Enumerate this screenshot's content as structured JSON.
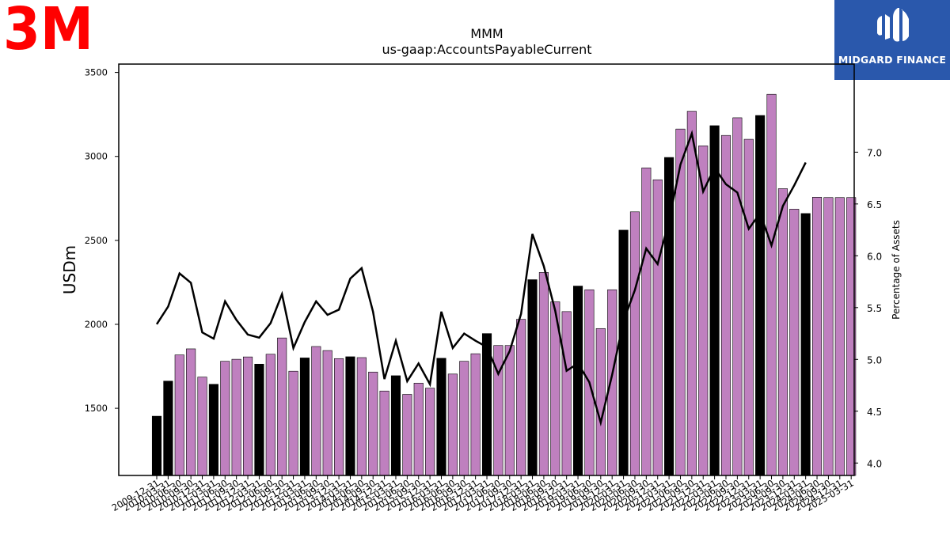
{
  "brand": {
    "left_logo_text": "3M",
    "left_logo_color": "#ff0000",
    "right_logo_text": "MIDGARD FINANCE",
    "right_logo_bg": "#2a58ac"
  },
  "chart_data": {
    "type": "bar",
    "title": "MMM",
    "subtitle": "us-gaap:AccountsPayableCurrent",
    "ylabel": "USDm",
    "y2label": "Percentage of Assets",
    "ylim": [
      1100,
      3550
    ],
    "y2lim": [
      3.88,
      7.85
    ],
    "yticks": [
      1500,
      2000,
      2500,
      3000,
      3500
    ],
    "y2ticks": [
      "4.0",
      "4.5",
      "5.0",
      "5.5",
      "6.0",
      "6.5",
      "7.0"
    ],
    "bar_colors": {
      "annual": "#000000",
      "quarterly": "#bf80bf"
    },
    "line_color": "#000000",
    "categories": [
      "2009-12-31",
      "2010-03-31",
      "2010-06-30",
      "2010-09-30",
      "2010-12-31",
      "2011-03-31",
      "2011-06-30",
      "2011-09-30",
      "2011-12-31",
      "2012-03-31",
      "2012-06-30",
      "2012-09-30",
      "2012-12-31",
      "2013-03-31",
      "2013-06-30",
      "2013-09-30",
      "2013-12-31",
      "2014-03-31",
      "2014-06-30",
      "2014-09-30",
      "2014-12-31",
      "2015-03-31",
      "2015-06-30",
      "2015-09-30",
      "2015-12-31",
      "2016-03-31",
      "2016-06-30",
      "2016-09-30",
      "2016-12-31",
      "2017-03-31",
      "2017-06-30",
      "2017-09-30",
      "2017-12-31",
      "2018-03-31",
      "2018-06-30",
      "2018-09-30",
      "2018-12-31",
      "2019-03-31",
      "2019-06-30",
      "2019-09-30",
      "2019-12-31",
      "2020-03-31",
      "2020-06-30",
      "2020-09-30",
      "2020-12-31",
      "2021-03-31",
      "2021-06-30",
      "2021-09-30",
      "2021-12-31",
      "2022-03-31",
      "2022-06-30",
      "2022-09-30",
      "2022-12-31",
      "2023-03-31",
      "2023-06-30",
      "2023-09-30",
      "2023-12-31",
      "2024-03-31",
      "2024-06-30",
      "2024-09-30",
      "2024-12-31",
      "2025-03-31"
    ],
    "values": [
      1453,
      1662,
      1818,
      1854,
      1686,
      1643,
      1780,
      1792,
      1806,
      1763,
      1822,
      1919,
      1721,
      1800,
      1868,
      1844,
      1796,
      1807,
      1802,
      1716,
      1603,
      1694,
      1583,
      1650,
      1620,
      1798,
      1704,
      1780,
      1825,
      1945,
      1874,
      1874,
      2030,
      2266,
      2309,
      2134,
      2076,
      2228,
      2206,
      1975,
      2206,
      2561,
      2670,
      2932,
      2861,
      2994,
      3163,
      3269,
      3063,
      3183,
      3125,
      3230,
      3102,
      3244,
      3370,
      2808,
      2686,
      2660,
      2757,
      2755,
      2755,
      2755
    ],
    "annual_flags": [
      1,
      1,
      0,
      0,
      0,
      1,
      0,
      0,
      0,
      1,
      0,
      0,
      0,
      1,
      0,
      0,
      0,
      1,
      0,
      0,
      0,
      1,
      0,
      0,
      0,
      1,
      0,
      0,
      0,
      1,
      0,
      0,
      0,
      1,
      0,
      0,
      0,
      1,
      0,
      0,
      0,
      1,
      0,
      0,
      0,
      1,
      0,
      0,
      0,
      1,
      0,
      0,
      0,
      1,
      0,
      0,
      0,
      1,
      0,
      0,
      0,
      0
    ],
    "pct_of_assets": [
      5.34,
      5.51,
      5.83,
      5.74,
      5.26,
      5.2,
      5.56,
      5.38,
      5.24,
      5.21,
      5.35,
      5.63,
      5.11,
      5.36,
      5.56,
      5.43,
      5.48,
      5.78,
      5.88,
      5.46,
      4.81,
      5.18,
      4.79,
      4.96,
      4.76,
      5.46,
      5.11,
      5.25,
      5.18,
      5.12,
      4.86,
      5.08,
      5.44,
      6.21,
      5.9,
      5.47,
      4.89,
      4.96,
      4.78,
      4.39,
      4.85,
      5.37,
      5.67,
      6.07,
      5.92,
      6.34,
      6.88,
      7.18,
      6.62,
      6.85,
      6.69,
      6.61,
      6.26,
      6.41,
      6.1,
      6.48,
      6.68,
      6.9
    ]
  }
}
